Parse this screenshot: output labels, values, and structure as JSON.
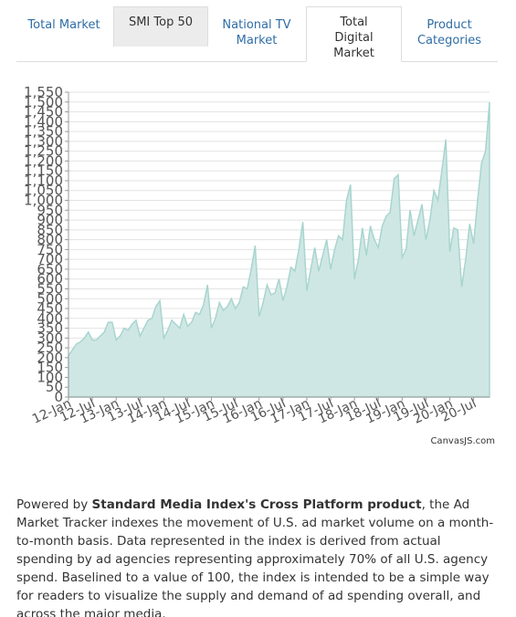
{
  "tabs": [
    "Total Market",
    "SMI Top 50",
    "National TV Market",
    "Total Digital Market",
    "Product Categories"
  ],
  "chart_data": {
    "type": "area",
    "categories": [
      "12-Jan",
      null,
      null,
      null,
      null,
      null,
      "12-Jul",
      null,
      null,
      null,
      null,
      null,
      "13-Jan",
      null,
      null,
      null,
      null,
      null,
      "13-Jul",
      null,
      null,
      null,
      null,
      null,
      "14-Jan",
      null,
      null,
      null,
      null,
      null,
      "14-Jul",
      null,
      null,
      null,
      null,
      null,
      "15-Jan",
      null,
      null,
      null,
      null,
      null,
      "15-Jul",
      null,
      null,
      null,
      null,
      null,
      "16-Jan",
      null,
      null,
      null,
      null,
      null,
      "16-Jul",
      null,
      null,
      null,
      null,
      null,
      "17-Jan",
      null,
      null,
      null,
      null,
      null,
      "17-Jul",
      null,
      null,
      null,
      null,
      null,
      "18-Jan",
      null,
      null,
      null,
      null,
      null,
      "18-Jul",
      null,
      null,
      null,
      null,
      null,
      "19-Jan",
      null,
      null,
      null,
      null,
      null,
      "19-Jul",
      null,
      null,
      null,
      null,
      null,
      "20-Jan",
      null,
      null,
      null,
      null,
      null,
      "20-Jul",
      null,
      null,
      null,
      null
    ],
    "values": [
      210,
      240,
      270,
      280,
      300,
      330,
      290,
      290,
      310,
      330,
      380,
      380,
      290,
      310,
      350,
      340,
      370,
      390,
      310,
      350,
      390,
      400,
      460,
      490,
      300,
      340,
      390,
      370,
      350,
      420,
      360,
      380,
      430,
      420,
      470,
      570,
      350,
      400,
      480,
      440,
      460,
      500,
      450,
      480,
      560,
      550,
      650,
      770,
      410,
      480,
      570,
      520,
      530,
      600,
      490,
      560,
      660,
      640,
      750,
      890,
      540,
      650,
      760,
      640,
      720,
      800,
      650,
      750,
      820,
      800,
      1000,
      1080,
      600,
      700,
      860,
      720,
      870,
      800,
      760,
      870,
      920,
      940,
      1110,
      1130,
      710,
      750,
      950,
      820,
      900,
      980,
      800,
      900,
      1050,
      1000,
      1150,
      1310,
      740,
      860,
      850,
      560,
      700,
      880,
      780,
      1000,
      1190,
      1250,
      1500
    ],
    "color": "#cfe7e4",
    "ylim": [
      0,
      1550
    ],
    "yticks": [
      0,
      50,
      100,
      150,
      200,
      250,
      300,
      350,
      400,
      450,
      500,
      550,
      600,
      650,
      700,
      750,
      800,
      850,
      900,
      950,
      {
        "value": 1000,
        "label": "1,000"
      },
      {
        "value": 1050,
        "label": "1,050"
      },
      {
        "value": 1100,
        "label": "1,100"
      },
      {
        "value": 1150,
        "label": "1,150"
      },
      {
        "value": 1200,
        "label": "1,200"
      },
      {
        "value": 1250,
        "label": "1,250"
      },
      {
        "value": 1300,
        "label": "1,300"
      },
      {
        "value": 1350,
        "label": "1,350"
      },
      {
        "value": 1400,
        "label": "1,400"
      },
      {
        "value": 1450,
        "label": "1,450"
      },
      {
        "value": 1500,
        "label": "1,500"
      },
      {
        "value": 1550,
        "label": "1,550"
      }
    ],
    "grid": true,
    "credit": "CanvasJS.com"
  },
  "description": {
    "before": "Powered by ",
    "bold": "Standard Media Index's Cross Platform product",
    "after": ", the Ad Market Tracker indexes the movement of U.S. ad market volume on a month-to-month basis. Data represented in the index is derived from actual spending by ad agencies representing approximately 70% of all U.S. agency spend. Baselined to a value of 100, the index is intended to be a simple way for readers to visualize the supply and demand of ad spending overall, and across the major media."
  }
}
